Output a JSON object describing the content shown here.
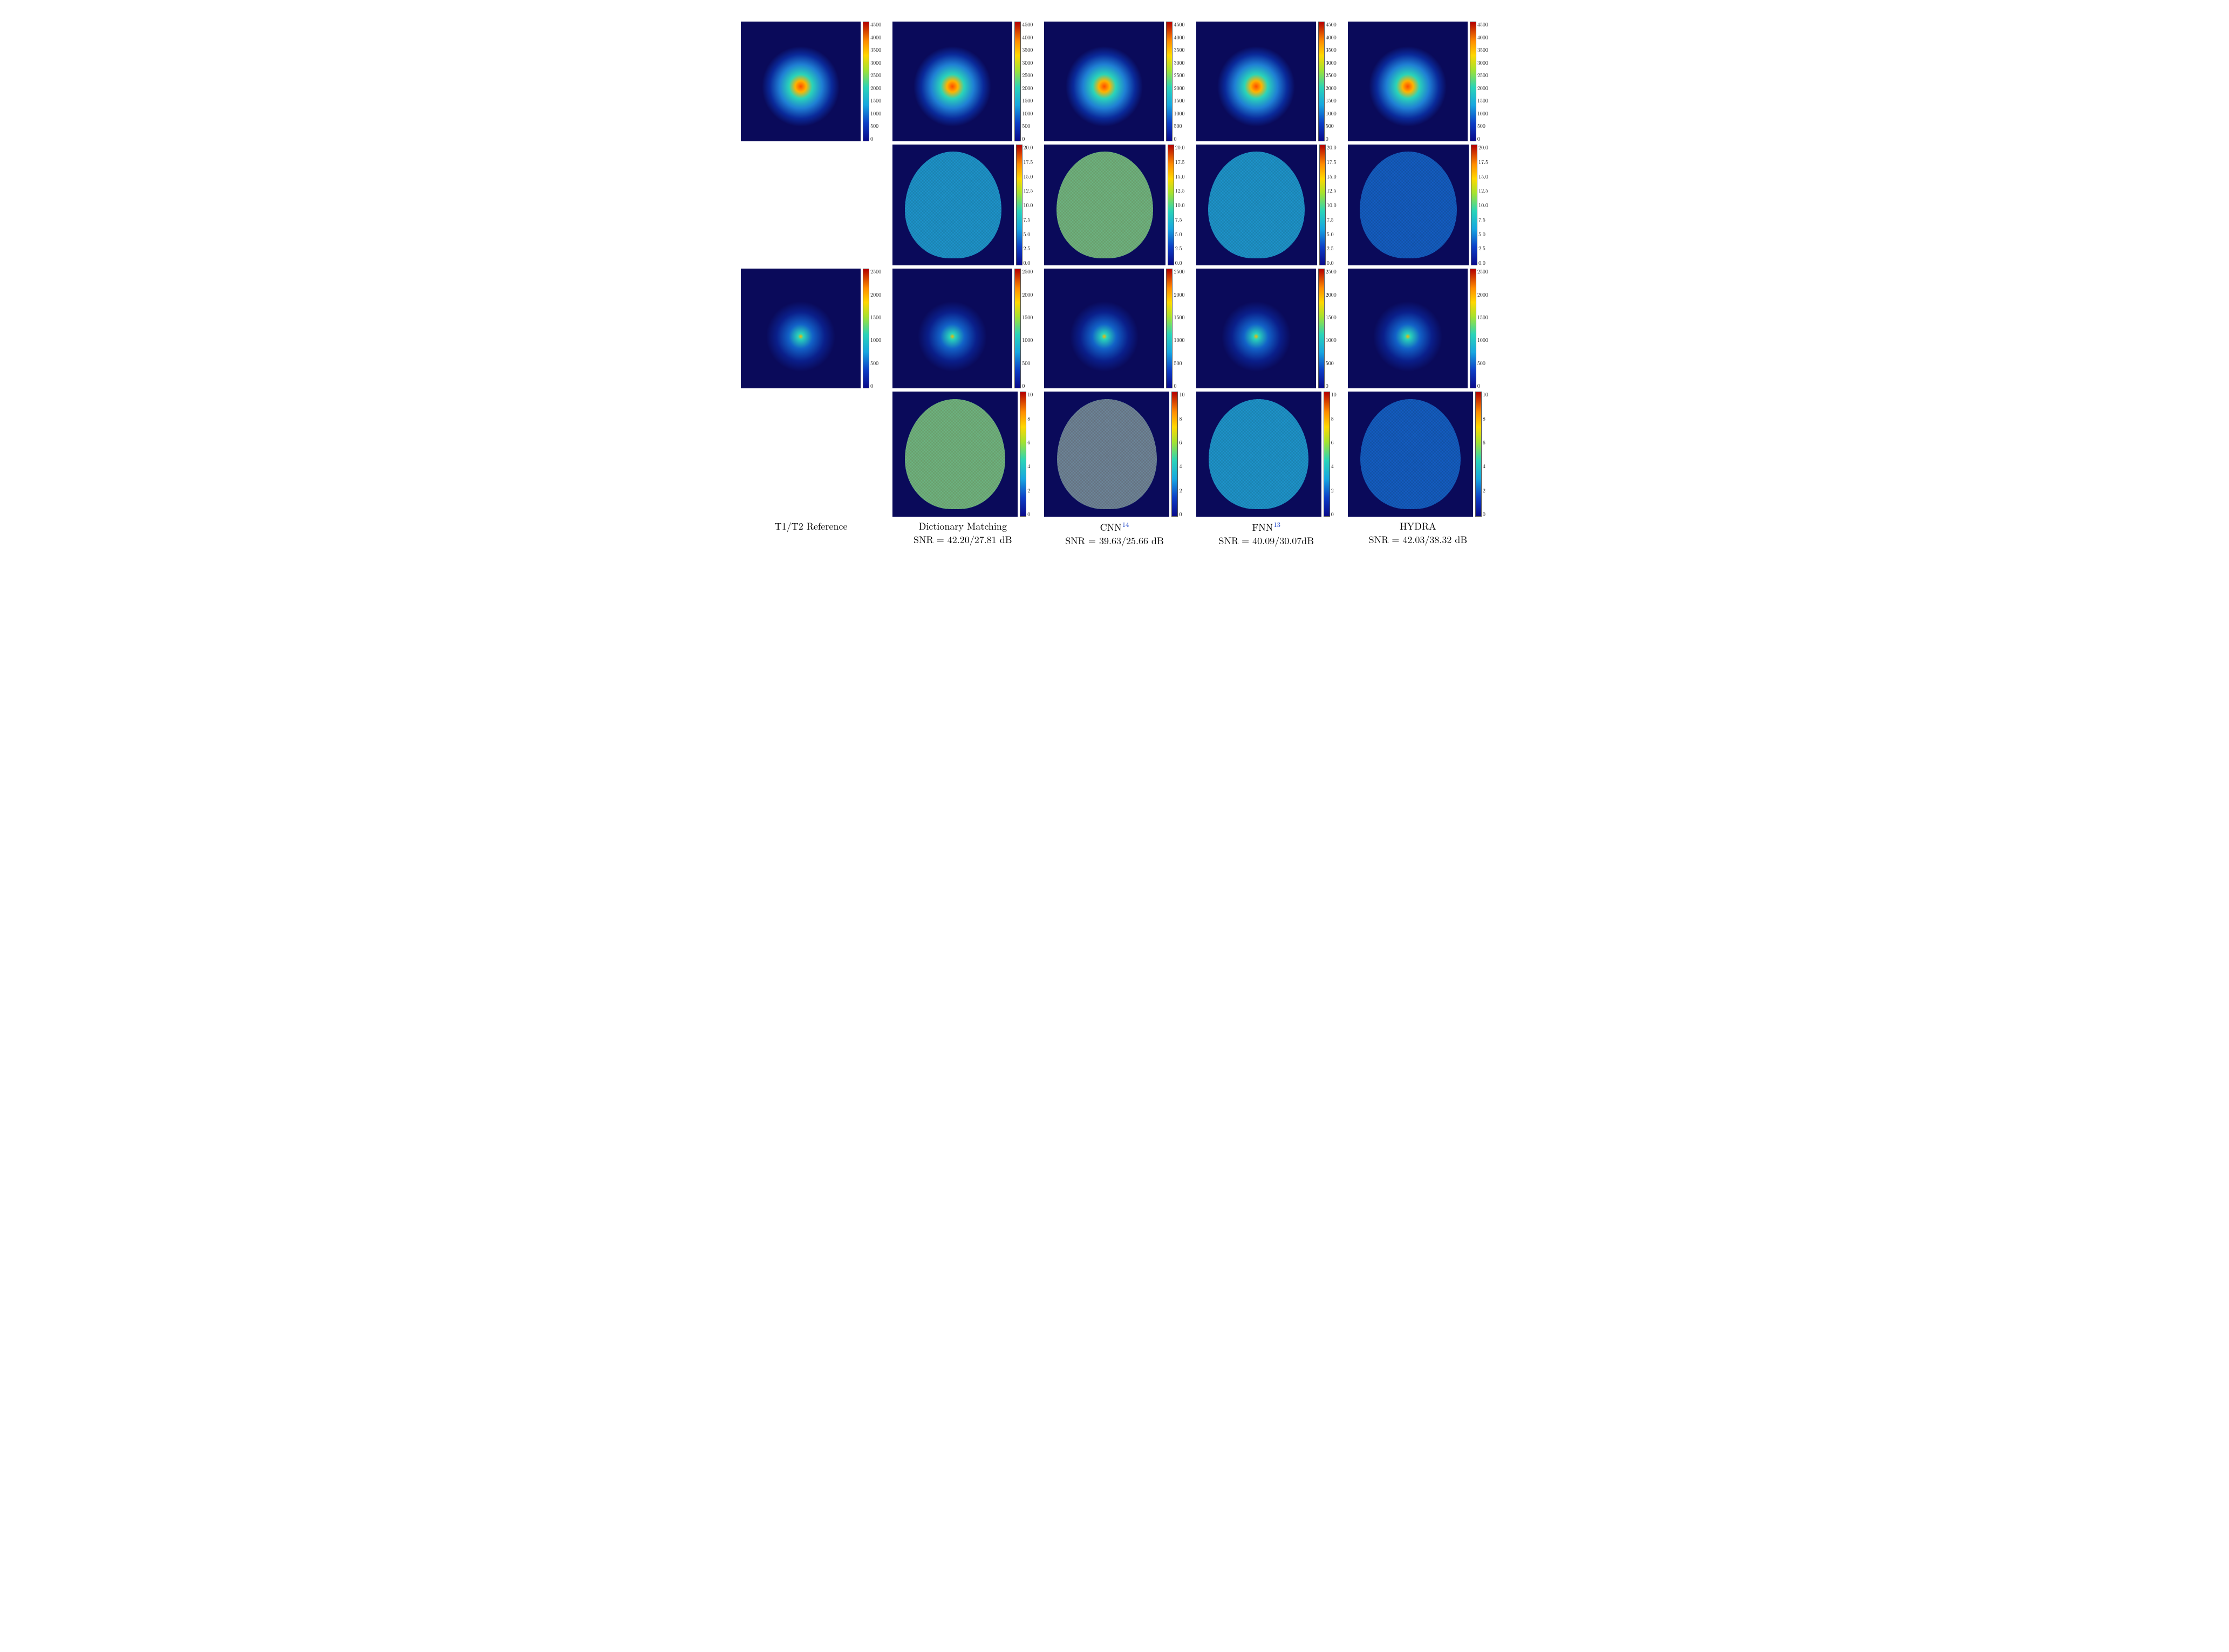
{
  "columns": [
    {
      "title": "T1/T2 Reference",
      "snr": ""
    },
    {
      "title": "Dictionary Matching",
      "snr": "SNR = 42.20/27.81 dB"
    },
    {
      "title": "CNN",
      "cite": "14",
      "snr": "SNR = 39.63/25.66 dB"
    },
    {
      "title": "FNN",
      "cite": "13",
      "snr": "SNR = 40.09/30.07dB"
    },
    {
      "title": "HYDRA",
      "snr": "SNR = 42.03/38.32 dB"
    }
  ],
  "rows": [
    {
      "kind": "map",
      "variant": "b1",
      "cells": [
        true,
        true,
        true,
        true,
        true
      ],
      "colorbar": "cb_4500"
    },
    {
      "kind": "error",
      "variant": "e1",
      "cells": [
        false,
        true,
        true,
        true,
        true
      ],
      "colorbar": "cb_20",
      "err_levels": [
        "mid",
        "high",
        "mid",
        "low"
      ]
    },
    {
      "kind": "map",
      "variant": "b2",
      "cells": [
        true,
        true,
        true,
        true,
        true
      ],
      "colorbar": "cb_2500"
    },
    {
      "kind": "error",
      "variant": "e2",
      "cells": [
        false,
        true,
        true,
        true,
        true
      ],
      "colorbar": "cb_10",
      "err_levels": [
        "high",
        "vhigh",
        "mid",
        "low"
      ]
    }
  ],
  "colorbars": {
    "cb_4500": {
      "min": 0,
      "max": 4500,
      "ticks": [
        "4500",
        "4000",
        "3500",
        "3000",
        "2500",
        "2000",
        "1500",
        "1000",
        "500",
        "0"
      ]
    },
    "cb_20": {
      "min": 0,
      "max": 20,
      "ticks": [
        "20.0",
        "17.5",
        "15.0",
        "12.5",
        "10.0",
        "7.5",
        "5.0",
        "2.5",
        "0.0"
      ]
    },
    "cb_2500": {
      "min": 0,
      "max": 2500,
      "ticks": [
        "2500",
        "2000",
        "1500",
        "1000",
        "500",
        "0"
      ]
    },
    "cb_10": {
      "min": 0,
      "max": 10,
      "ticks": [
        "10",
        "8",
        "6",
        "4",
        "2",
        "0"
      ]
    }
  },
  "styling": {
    "background": "#ffffff",
    "panel_background": "#0a0a5a",
    "jet_gradient_stops": [
      "#0a0a8a",
      "#0d3fc7",
      "#17a6e0",
      "#2ad4b8",
      "#a6e22e",
      "#ffd700",
      "#ff8c00",
      "#b30000"
    ],
    "label_fontsize_pt": 14,
    "tick_fontsize_pt": 8,
    "cite_color": "#1840c7",
    "grid_cols": 5,
    "grid_rows": 4,
    "aspect_ratio": "4131:3063"
  }
}
